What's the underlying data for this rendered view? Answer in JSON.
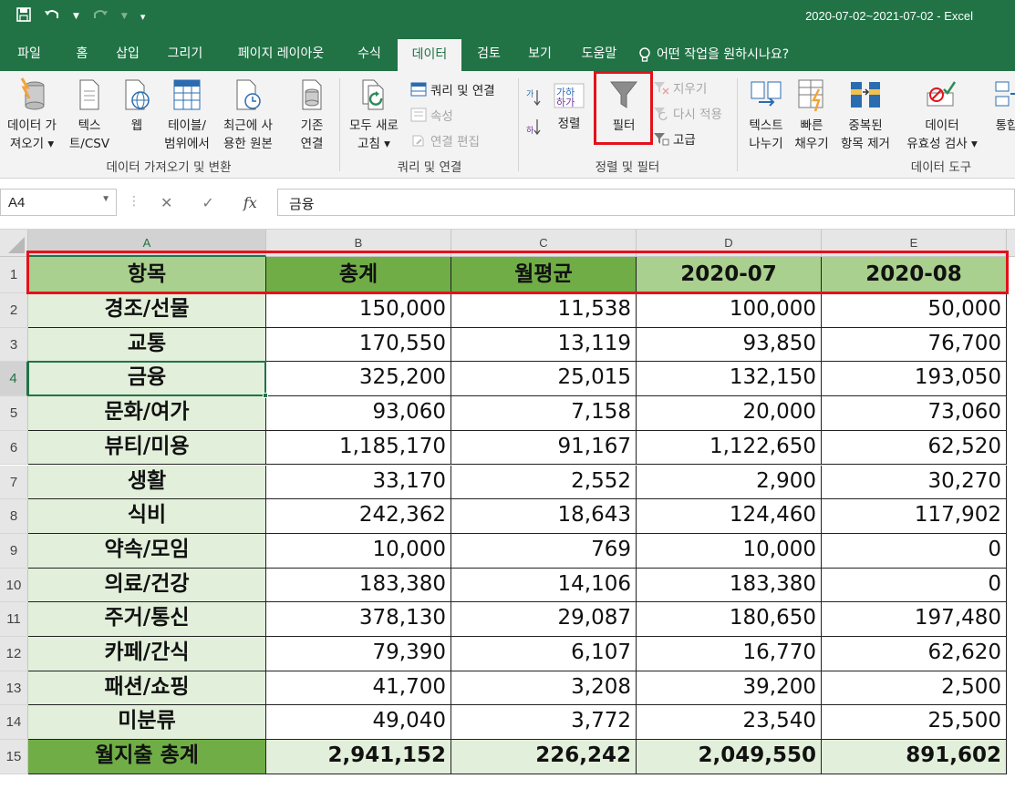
{
  "window": {
    "title": "2020-07-02~2021-07-02  -  Excel"
  },
  "qat": {
    "save_icon": "save-icon",
    "undo_icon": "undo-icon",
    "redo_icon": "redo-icon",
    "customize": "▾"
  },
  "tabs": [
    "파일",
    "홈",
    "삽입",
    "그리기",
    "페이지 레이아웃",
    "수식",
    "데이터",
    "검토",
    "보기",
    "도움말",
    "어떤 작업을 원하시나요?"
  ],
  "active_tab": "데이터",
  "ribbon": {
    "get_data": {
      "label1": "데이터 가",
      "label2": "져오기 ▾"
    },
    "text_csv": {
      "label1": "텍스",
      "label2": "트/CSV"
    },
    "web": {
      "label1": "웹"
    },
    "from_table": {
      "label1": "테이블/",
      "label2": "범위에서"
    },
    "recent_sources": {
      "label1": "최근에 사",
      "label2": "용한 원본"
    },
    "existing": {
      "label1": "기존",
      "label2": "연결"
    },
    "group1_label": "데이터 가져오기 및 변환",
    "refresh_all": {
      "label1": "모두 새로",
      "label2": "고침 ▾"
    },
    "queries_connections": "쿼리 및 연결",
    "properties": "속성",
    "edit_links": "연결 편집",
    "group2_label": "쿼리 및 연결",
    "sort_label": "정렬",
    "filter_label": "필터",
    "clear": "지우기",
    "reapply": "다시 적용",
    "advanced": "고급",
    "group3_label": "정렬 및 필터",
    "text_to_columns": {
      "label1": "텍스트",
      "label2": "나누기"
    },
    "flash_fill": {
      "label1": "빠른",
      "label2": "채우기"
    },
    "remove_duplicates": {
      "label1": "중복된",
      "label2": "항목 제거"
    },
    "data_validation": {
      "label1": "데이터",
      "label2": "유효성 검사 ▾"
    },
    "group4_label": "데이터 도구",
    "consolidate": {
      "label1": "통합"
    }
  },
  "formula_bar": {
    "name_box": "A4",
    "fx": "fx",
    "content": "금융"
  },
  "sheet": {
    "columns": [
      "A",
      "B",
      "C",
      "D",
      "E"
    ],
    "rows": [
      "1",
      "2",
      "3",
      "4",
      "5",
      "6",
      "7",
      "8",
      "9",
      "10",
      "11",
      "12",
      "13",
      "14",
      "15"
    ],
    "header": [
      "항목",
      "총계",
      "월평균",
      "2020-07",
      "2020-08"
    ],
    "data": [
      [
        "경조/선물",
        "150,000",
        "11,538",
        "100,000",
        "50,000"
      ],
      [
        "교통",
        "170,550",
        "13,119",
        "93,850",
        "76,700"
      ],
      [
        "금융",
        "325,200",
        "25,015",
        "132,150",
        "193,050"
      ],
      [
        "문화/여가",
        "93,060",
        "7,158",
        "20,000",
        "73,060"
      ],
      [
        "뷰티/미용",
        "1,185,170",
        "91,167",
        "1,122,650",
        "62,520"
      ],
      [
        "생활",
        "33,170",
        "2,552",
        "2,900",
        "30,270"
      ],
      [
        "식비",
        "242,362",
        "18,643",
        "124,460",
        "117,902"
      ],
      [
        "약속/모임",
        "10,000",
        "769",
        "10,000",
        "0"
      ],
      [
        "의료/건강",
        "183,380",
        "14,106",
        "183,380",
        "0"
      ],
      [
        "주거/통신",
        "378,130",
        "29,087",
        "180,650",
        "197,480"
      ],
      [
        "카페/간식",
        "79,390",
        "6,107",
        "16,770",
        "62,620"
      ],
      [
        "패션/쇼핑",
        "41,700",
        "3,208",
        "39,200",
        "2,500"
      ],
      [
        "미분류",
        "49,040",
        "3,772",
        "23,540",
        "25,500"
      ]
    ],
    "total": [
      "월지출 총계",
      "2,941,152",
      "226,242",
      "2,049,550",
      "891,602"
    ]
  },
  "colors": {
    "excel_green": "#217346",
    "header_dark": "#70ad47",
    "header_light": "#a9d08e",
    "label_bg": "#e2efda",
    "highlight_red": "#e3121a"
  }
}
